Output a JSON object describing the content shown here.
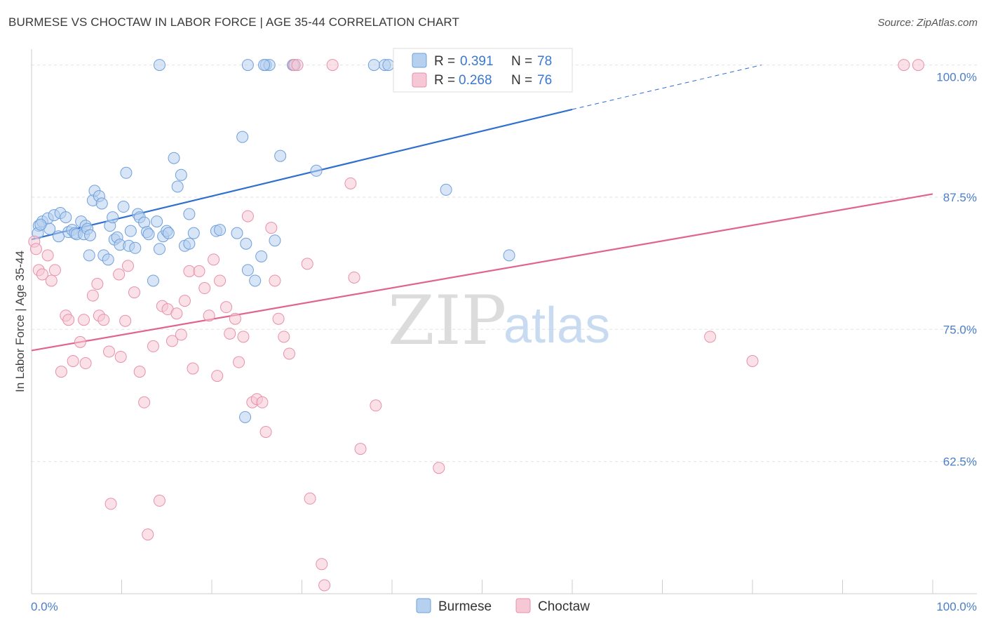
{
  "title": "BURMESE VS CHOCTAW IN LABOR FORCE | AGE 35-44 CORRELATION CHART",
  "source": "Source: ZipAtlas.com",
  "watermark": {
    "zip": "ZIP",
    "atlas": "atlas"
  },
  "chart_data": {
    "type": "scatter",
    "xlabel": "",
    "ylabel": "In Labor Force | Age 35-44",
    "xlim": [
      0,
      100
    ],
    "ylim": [
      50,
      101.5
    ],
    "x_tick_labels": {
      "left": "0.0%",
      "right": "100.0%"
    },
    "y_ticks": [
      {
        "value": 62.5,
        "label": "62.5%"
      },
      {
        "value": 75.0,
        "label": "75.0%"
      },
      {
        "value": 87.5,
        "label": "87.5%"
      },
      {
        "value": 100.0,
        "label": "100.0%"
      }
    ],
    "legend": [
      {
        "name": "Burmese",
        "r_label": "R =",
        "r": "0.391",
        "n_label": "N =",
        "n": "78"
      },
      {
        "name": "Choctaw",
        "r_label": "R =",
        "r": "0.268",
        "n_label": "N =",
        "n": "76"
      }
    ],
    "series": [
      {
        "name": "Burmese",
        "color": "#6fa0dc",
        "fill": "#b6d0ef",
        "trend": {
          "x0": 0,
          "y0": 83.5,
          "x1": 60,
          "y1": 95.8,
          "dash_to_x": 81,
          "dash_to_y": 100.0,
          "color": "#2f6fcf"
        },
        "points": [
          [
            0.8,
            84.8
          ],
          [
            1.2,
            85.2
          ],
          [
            1.8,
            85.5
          ],
          [
            2.0,
            84.5
          ],
          [
            2.5,
            85.8
          ],
          [
            3.0,
            83.8
          ],
          [
            3.2,
            86.0
          ],
          [
            3.8,
            85.6
          ],
          [
            4.1,
            84.2
          ],
          [
            4.5,
            84.4
          ],
          [
            4.8,
            84.1
          ],
          [
            5.0,
            84.0
          ],
          [
            5.5,
            85.2
          ],
          [
            5.8,
            84.0
          ],
          [
            6.0,
            84.8
          ],
          [
            6.2,
            84.5
          ],
          [
            6.5,
            83.9
          ],
          [
            6.4,
            82.0
          ],
          [
            6.8,
            87.2
          ],
          [
            7.0,
            88.1
          ],
          [
            7.5,
            87.6
          ],
          [
            7.8,
            86.9
          ],
          [
            8.0,
            82.0
          ],
          [
            8.5,
            81.6
          ],
          [
            8.7,
            84.8
          ],
          [
            9.0,
            85.6
          ],
          [
            9.2,
            83.5
          ],
          [
            9.5,
            83.7
          ],
          [
            9.8,
            83.0
          ],
          [
            10.2,
            86.6
          ],
          [
            10.5,
            89.8
          ],
          [
            10.8,
            82.9
          ],
          [
            11.0,
            84.3
          ],
          [
            11.5,
            82.7
          ],
          [
            11.8,
            85.9
          ],
          [
            12.0,
            85.6
          ],
          [
            12.5,
            85.1
          ],
          [
            12.8,
            84.2
          ],
          [
            13.0,
            84.0
          ],
          [
            13.5,
            79.6
          ],
          [
            13.9,
            85.2
          ],
          [
            14.2,
            82.6
          ],
          [
            14.6,
            83.8
          ],
          [
            15.0,
            84.3
          ],
          [
            15.2,
            84.1
          ],
          [
            15.8,
            91.2
          ],
          [
            16.2,
            88.5
          ],
          [
            16.6,
            89.6
          ],
          [
            17.5,
            85.9
          ],
          [
            17.0,
            82.9
          ],
          [
            17.5,
            83.1
          ],
          [
            18.0,
            84.1
          ],
          [
            20.5,
            84.3
          ],
          [
            20.9,
            84.4
          ],
          [
            22.8,
            84.1
          ],
          [
            23.4,
            93.2
          ],
          [
            23.8,
            83.1
          ],
          [
            24.0,
            80.6
          ],
          [
            23.7,
            66.7
          ],
          [
            24.8,
            79.6
          ],
          [
            25.5,
            81.9
          ],
          [
            27.0,
            83.4
          ],
          [
            27.6,
            91.4
          ],
          [
            29.0,
            100.0
          ],
          [
            31.6,
            90.0
          ],
          [
            14.2,
            100.0
          ],
          [
            24.0,
            100.0
          ],
          [
            26.0,
            100.0
          ],
          [
            26.4,
            100.0
          ],
          [
            25.8,
            100.0
          ],
          [
            29.2,
            100.0
          ],
          [
            38.0,
            100.0
          ],
          [
            39.2,
            100.0
          ],
          [
            39.6,
            100.0
          ],
          [
            46.0,
            88.2
          ],
          [
            53.0,
            82.0
          ],
          [
            0.7,
            84.1
          ],
          [
            1.0,
            84.9
          ]
        ]
      },
      {
        "name": "Choctaw",
        "color": "#e890ab",
        "fill": "#f6c8d6",
        "trend": {
          "x0": 0,
          "y0": 73.0,
          "x1": 100,
          "y1": 87.8,
          "color": "#e0648f"
        },
        "points": [
          [
            0.3,
            83.3
          ],
          [
            0.5,
            82.6
          ],
          [
            0.8,
            80.6
          ],
          [
            1.2,
            80.2
          ],
          [
            1.8,
            82.0
          ],
          [
            2.2,
            79.6
          ],
          [
            2.6,
            80.6
          ],
          [
            3.3,
            71.0
          ],
          [
            3.8,
            76.3
          ],
          [
            4.1,
            75.9
          ],
          [
            4.6,
            72.0
          ],
          [
            5.4,
            73.8
          ],
          [
            5.8,
            75.9
          ],
          [
            6.0,
            71.8
          ],
          [
            6.8,
            78.2
          ],
          [
            7.3,
            79.3
          ],
          [
            7.5,
            76.3
          ],
          [
            8.0,
            75.9
          ],
          [
            8.6,
            72.9
          ],
          [
            8.8,
            58.5
          ],
          [
            9.7,
            80.2
          ],
          [
            9.9,
            72.4
          ],
          [
            10.4,
            75.8
          ],
          [
            10.7,
            81.0
          ],
          [
            11.4,
            78.5
          ],
          [
            12.0,
            71.0
          ],
          [
            12.5,
            68.1
          ],
          [
            12.9,
            55.6
          ],
          [
            13.5,
            73.4
          ],
          [
            14.2,
            58.8
          ],
          [
            14.5,
            77.2
          ],
          [
            15.1,
            76.9
          ],
          [
            15.6,
            73.9
          ],
          [
            16.1,
            76.5
          ],
          [
            16.6,
            74.5
          ],
          [
            17.0,
            77.7
          ],
          [
            17.5,
            80.5
          ],
          [
            17.9,
            71.3
          ],
          [
            18.6,
            80.5
          ],
          [
            19.2,
            78.9
          ],
          [
            19.7,
            76.3
          ],
          [
            20.2,
            81.6
          ],
          [
            20.6,
            70.6
          ],
          [
            20.9,
            79.6
          ],
          [
            21.6,
            77.1
          ],
          [
            22.0,
            74.6
          ],
          [
            22.6,
            76.0
          ],
          [
            23.0,
            71.9
          ],
          [
            23.5,
            74.3
          ],
          [
            24.0,
            85.7
          ],
          [
            24.5,
            68.1
          ],
          [
            25.0,
            68.4
          ],
          [
            25.6,
            68.1
          ],
          [
            26.0,
            65.3
          ],
          [
            26.6,
            84.6
          ],
          [
            27.0,
            79.6
          ],
          [
            27.4,
            76.0
          ],
          [
            28.0,
            74.3
          ],
          [
            28.6,
            72.7
          ],
          [
            29.1,
            100.0
          ],
          [
            29.5,
            100.0
          ],
          [
            30.6,
            81.2
          ],
          [
            30.9,
            59.0
          ],
          [
            32.2,
            52.8
          ],
          [
            32.5,
            50.8
          ],
          [
            33.4,
            100.0
          ],
          [
            35.4,
            88.8
          ],
          [
            35.8,
            79.9
          ],
          [
            36.5,
            63.7
          ],
          [
            38.2,
            67.8
          ],
          [
            45.2,
            61.9
          ],
          [
            46.8,
            100.0
          ],
          [
            75.3,
            74.3
          ],
          [
            80.0,
            72.0
          ],
          [
            96.8,
            100.0
          ],
          [
            98.4,
            100.0
          ]
        ]
      }
    ]
  }
}
